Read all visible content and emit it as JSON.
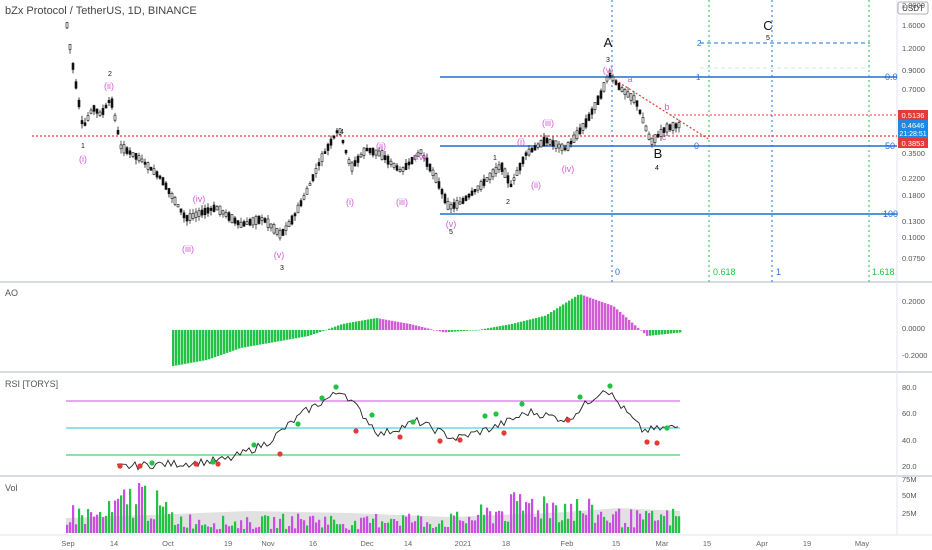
{
  "header": {
    "title": "bZx Protocol / TetherUS, 1D, BINANCE",
    "currency_badge": "USDT"
  },
  "price_axis": {
    "ticks": [
      "2.0000",
      "1.6000",
      "1.2000",
      "0.9000",
      "0.7000",
      "0.5000",
      "0.3500",
      "0.2200",
      "0.1800",
      "0.1300",
      "0.1000",
      "0.0750",
      "0.0500"
    ]
  },
  "price_markers": {
    "upper": "0.5136",
    "current": "0.4646",
    "countdown": "21:28:51",
    "lower": "0.3853"
  },
  "fib_labels": {
    "f0": "0.0",
    "f50": "50",
    "f100": "100",
    "left": "0",
    "top_left": "1",
    "two": "2"
  },
  "time_fib_labels": {
    "t0": "0",
    "t0618": "0.618",
    "t1": "1",
    "t1618": "1.618"
  },
  "waves": {
    "big": [
      "A",
      "B",
      "C"
    ],
    "black": [
      "1",
      "2",
      "3",
      "4",
      "5",
      "1",
      "2",
      "3",
      "4",
      "5"
    ],
    "purple": [
      "(i)",
      "(ii)",
      "(iii)",
      "(iv)",
      "(v)",
      "(i)",
      "(ii)",
      "(iii)",
      "(iv)",
      "(v)",
      "(i)",
      "(ii)",
      "(iii)",
      "(iv)",
      "(v)",
      "a",
      "b",
      "c"
    ]
  },
  "panes": {
    "ao_label": "AO",
    "rsi_label": "RSI [TORYS]",
    "vol_label": "Vol"
  },
  "ao_axis": [
    "0.2000",
    "0.0000",
    "-0.2000"
  ],
  "rsi_axis": [
    "80.0",
    "60.0",
    "40.0",
    "20.0"
  ],
  "vol_axis": [
    "75M",
    "50M",
    "25M"
  ],
  "time_axis": [
    "Sep",
    "14",
    "Oct",
    "19",
    "Nov",
    "16",
    "Dec",
    "14",
    "2021",
    "18",
    "Feb",
    "15",
    "Mar",
    "15",
    "Apr",
    "19",
    "May"
  ],
  "colors": {
    "purple": "#c84fe0",
    "green": "#22c244",
    "blue": "#1e6fd9",
    "red": "#e53935",
    "wave_purple": "#d35bd6"
  },
  "chart_data": {
    "type": "candlestick",
    "scale": "log",
    "price_series": [
      [
        "Sep",
        1.62
      ],
      [
        "14",
        0.45
      ],
      [
        "Oct",
        0.22
      ],
      [
        "19",
        0.14
      ],
      [
        "Nov",
        0.11
      ],
      [
        "16",
        0.45
      ],
      [
        "Dec",
        0.28
      ],
      [
        "14",
        0.32
      ],
      [
        "2021",
        0.14
      ],
      [
        "18",
        0.21
      ],
      [
        "Feb",
        0.52
      ],
      [
        "15",
        0.8
      ],
      [
        "Mar",
        0.35
      ],
      [
        "15",
        0.45
      ]
    ],
    "ao": [
      -0.3,
      -0.25,
      -0.15,
      -0.1,
      -0.05,
      0.05,
      0.1,
      0.05,
      -0.02,
      0.0,
      0.05,
      0.12,
      0.3,
      0.2,
      -0.05,
      -0.02
    ],
    "rsi": [
      21,
      23,
      24,
      27,
      39,
      62,
      78,
      45,
      55,
      42,
      50,
      62,
      56,
      80,
      48,
      51
    ],
    "rsi_levels": [
      70,
      50,
      30
    ],
    "volume": [
      35,
      30,
      70,
      25,
      20,
      18,
      22,
      25,
      15,
      30,
      20,
      25,
      40,
      55,
      45,
      30,
      25,
      30
    ]
  }
}
